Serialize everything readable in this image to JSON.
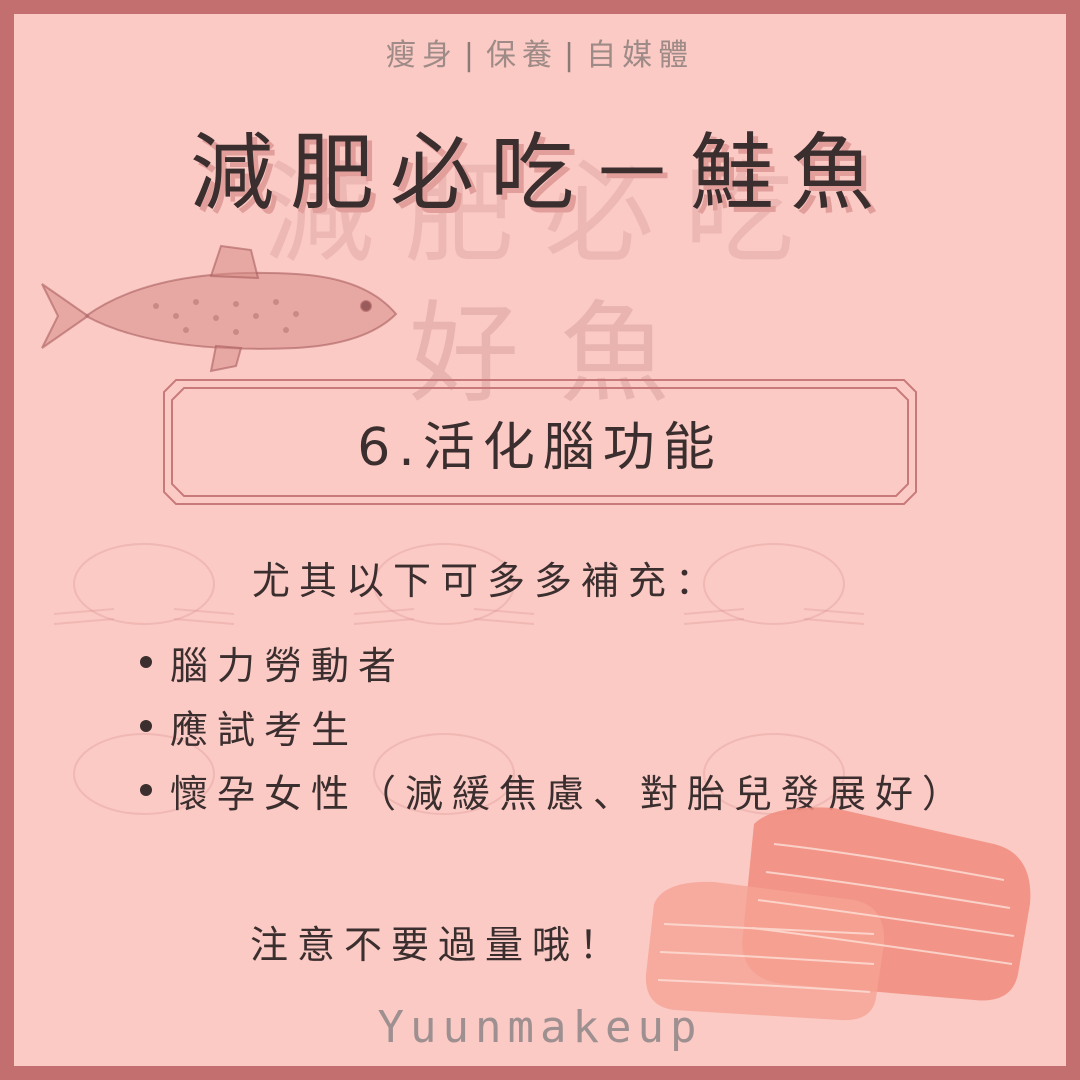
{
  "tagline": {
    "items": [
      "瘦身",
      "保養",
      "自媒體"
    ],
    "separator": "|"
  },
  "title": "減肥必吃－鮭魚",
  "watermark": {
    "top": "減肥必吃",
    "bottom": "好魚"
  },
  "section": {
    "heading": "6.活化腦功能"
  },
  "intro": "尤其以下可多多補充：",
  "bullets": [
    "腦力勞動者",
    "應試考生",
    "懷孕女性（減緩焦慮、對胎兒發展好）"
  ],
  "note": "注意不要過量哦！",
  "signature": "Yuunmakeup",
  "colors": {
    "frame": "#c46f6f",
    "background": "#fbcac5",
    "text": "#3b2e2e",
    "title_shadow": "#e29e9a",
    "salmon": "#f08c7c"
  },
  "icons": [
    "fish-illustration-icon",
    "salmon-fillet-icon"
  ]
}
